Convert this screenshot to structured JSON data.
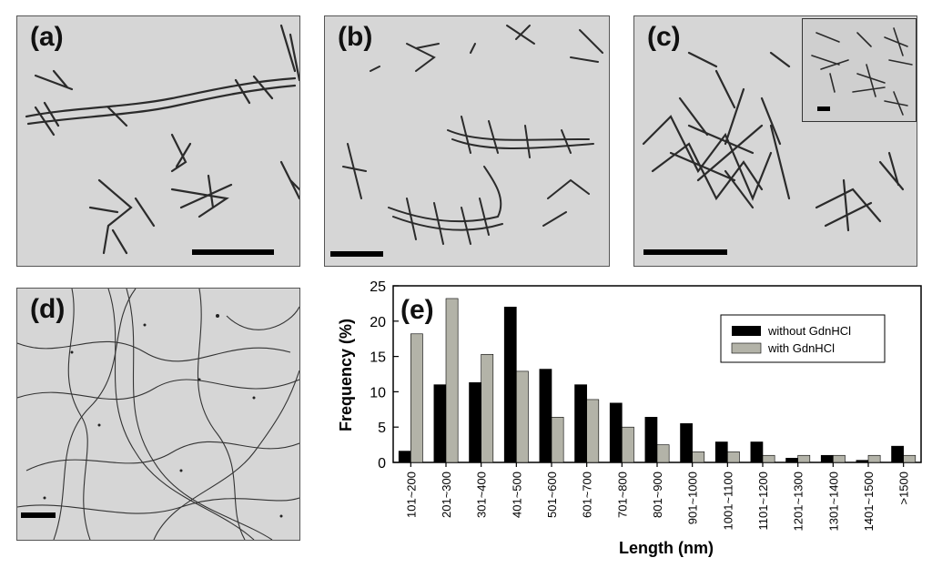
{
  "panels": {
    "a": {
      "label": "(a)"
    },
    "b": {
      "label": "(b)"
    },
    "c": {
      "label": "(c)"
    },
    "d": {
      "label": "(d)"
    },
    "e": {
      "label": "(e)"
    }
  },
  "colors": {
    "without": "#000000",
    "with": "#b3b3a8",
    "panel_bg": "#d6d6d6"
  },
  "chart_data": {
    "type": "bar",
    "title": "",
    "xlabel": "Length (nm)",
    "ylabel": "Frequency (%)",
    "ylim": [
      0,
      25
    ],
    "yticks": [
      0,
      5,
      10,
      15,
      20,
      25
    ],
    "categories": [
      "101~200",
      "201~300",
      "301~400",
      "401~500",
      "501~600",
      "601~700",
      "701~800",
      "801~900",
      "901~1000",
      "1001~1100",
      "1101~1200",
      "1201~1300",
      "1301~1400",
      "1401~1500",
      ">1500"
    ],
    "series": [
      {
        "name": "without GdnHCl",
        "color": "#000000",
        "values": [
          1.6,
          11.0,
          11.3,
          22.0,
          13.2,
          11.0,
          8.4,
          6.4,
          5.5,
          2.9,
          2.9,
          0.6,
          1.0,
          0.3,
          2.3
        ]
      },
      {
        "name": "with GdnHCl",
        "color": "#b3b3a8",
        "values": [
          18.2,
          23.2,
          15.3,
          12.9,
          6.4,
          8.9,
          5.0,
          2.5,
          1.5,
          1.5,
          1.0,
          1.0,
          1.0,
          1.0,
          1.0
        ]
      }
    ],
    "legend_position": "top-right",
    "grid": false
  }
}
